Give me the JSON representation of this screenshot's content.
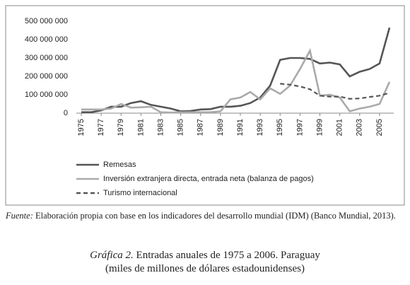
{
  "chart_data": {
    "type": "line",
    "x": [
      1975,
      1976,
      1977,
      1978,
      1979,
      1980,
      1981,
      1982,
      1983,
      1984,
      1985,
      1986,
      1987,
      1988,
      1989,
      1990,
      1991,
      1992,
      1993,
      1994,
      1995,
      1996,
      1997,
      1998,
      1999,
      2000,
      2001,
      2002,
      2003,
      2004,
      2005,
      2006
    ],
    "series": [
      {
        "name": "Remesas",
        "color": "#555555",
        "line_style": "solid",
        "values": [
          5000000,
          5000000,
          15000000,
          35000000,
          35000000,
          55000000,
          65000000,
          45000000,
          35000000,
          25000000,
          10000000,
          12000000,
          20000000,
          22000000,
          35000000,
          35000000,
          40000000,
          55000000,
          85000000,
          150000000,
          290000000,
          300000000,
          300000000,
          295000000,
          270000000,
          275000000,
          265000000,
          200000000,
          225000000,
          240000000,
          270000000,
          465000000
        ]
      },
      {
        "name": "Inversión extranjera directa, entrada neta (balanza  de pagos)",
        "color": "#aaaaaa",
        "line_style": "solid",
        "values": [
          20000000,
          20000000,
          20000000,
          25000000,
          50000000,
          30000000,
          32000000,
          35000000,
          5000000,
          3000000,
          5000000,
          5000000,
          5000000,
          5000000,
          10000000,
          75000000,
          85000000,
          115000000,
          75000000,
          135000000,
          105000000,
          150000000,
          240000000,
          340000000,
          95000000,
          100000000,
          85000000,
          10000000,
          25000000,
          35000000,
          50000000,
          170000000
        ]
      },
      {
        "name": "Turismo internacional",
        "color": "#555555",
        "line_style": "dashed",
        "values": [
          null,
          null,
          null,
          null,
          null,
          null,
          null,
          null,
          null,
          null,
          null,
          null,
          null,
          null,
          null,
          null,
          null,
          null,
          null,
          null,
          160000000,
          155000000,
          145000000,
          130000000,
          95000000,
          90000000,
          90000000,
          78000000,
          80000000,
          88000000,
          95000000,
          110000000
        ]
      }
    ],
    "xlim": [
      1975,
      2006
    ],
    "xticks": [
      1975,
      1977,
      1979,
      1981,
      1983,
      1985,
      1987,
      1989,
      1991,
      1993,
      1995,
      1997,
      1999,
      2001,
      2003,
      2005
    ],
    "ylim": [
      0,
      500000000
    ],
    "yticks": [
      {
        "value": 0,
        "label": "0"
      },
      {
        "value": 100000000,
        "label": "100 000 000"
      },
      {
        "value": 200000000,
        "label": "200 000 000"
      },
      {
        "value": 300000000,
        "label": "300 000 000"
      },
      {
        "value": 400000000,
        "label": "400 000 000"
      },
      {
        "value": 500000000,
        "label": "500 000 000"
      }
    ],
    "grid": false,
    "legend": "bottom"
  },
  "notes": {
    "source_label": "Fuente:",
    "source_text": "Elaboración propia con base en los indicadores del desarrollo mundial (IDM) (Banco Mundial, 2013).",
    "caption_label": "Gráfica 2.",
    "caption_title": "Entradas anuales de 1975 a 2006. Paraguay",
    "caption_subtitle": "(miles de millones de dólares estadounidenses)"
  }
}
